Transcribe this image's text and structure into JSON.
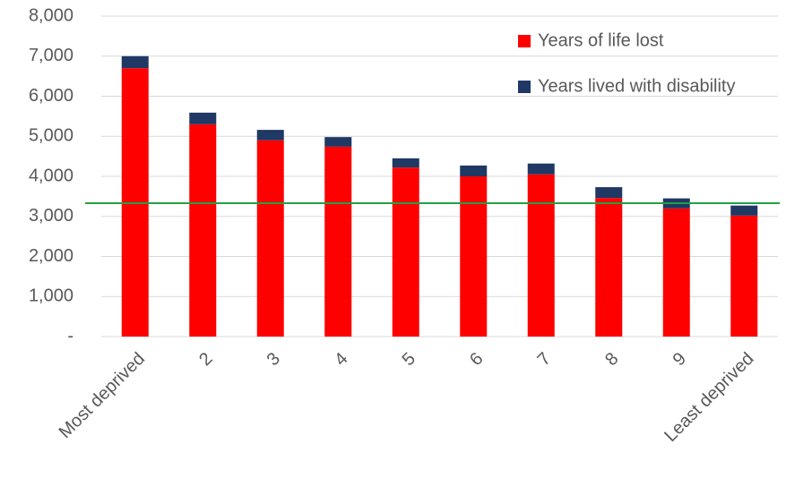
{
  "chart_data": {
    "type": "stacked_bar",
    "categories": [
      "Most deprived",
      "2",
      "3",
      "4",
      "5",
      "6",
      "7",
      "8",
      "9",
      "Least deprived"
    ],
    "series": [
      {
        "name": "Years of life lost",
        "color": "#ff0000",
        "values": [
          6700,
          5300,
          4900,
          4740,
          4220,
          4000,
          4050,
          3460,
          3200,
          3020
        ]
      },
      {
        "name": "Years lived with disability",
        "color": "#1f3864",
        "values": [
          300,
          290,
          260,
          240,
          230,
          270,
          270,
          270,
          250,
          250
        ]
      }
    ],
    "reference_line": {
      "value": 3330,
      "color": "#22a045"
    },
    "ylim": [
      0,
      8000
    ],
    "yticks": [
      {
        "value": 0,
        "label": "-"
      },
      {
        "value": 1000,
        "label": "1,000"
      },
      {
        "value": 2000,
        "label": "2,000"
      },
      {
        "value": 3000,
        "label": "3,000"
      },
      {
        "value": 4000,
        "label": "4,000"
      },
      {
        "value": 5000,
        "label": "5,000"
      },
      {
        "value": 6000,
        "label": "6,000"
      },
      {
        "value": 7000,
        "label": "7,000"
      },
      {
        "value": 8000,
        "label": "8,000"
      }
    ],
    "grid": true
  }
}
